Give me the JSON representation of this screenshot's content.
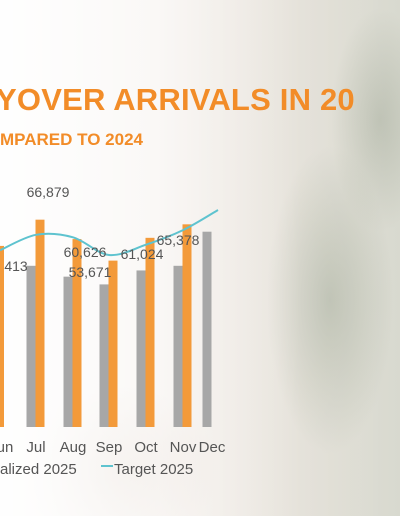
{
  "title": "YOVER ARRIVALS IN 20",
  "subtitle": "MPARED TO 2024",
  "colors": {
    "title": "#f28c28",
    "realized_2025": "#f39a3a",
    "actual_2024": "#a7a7a7",
    "target_2025": "#5ec3cf",
    "label_text": "#555555"
  },
  "chart_data": {
    "type": "bar",
    "categories": [
      "un",
      "Jul",
      "Aug",
      "Sep",
      "Oct",
      "Nov",
      "Dec"
    ],
    "series": [
      {
        "name": "",
        "kind": "bar",
        "values": [
          null,
          52000,
          48500,
          46000,
          50500,
          52000,
          63000
        ]
      },
      {
        "name": "alized 2025",
        "kind": "bar",
        "values": [
          58413,
          66879,
          60626,
          53671,
          61024,
          65378,
          null
        ]
      },
      {
        "name": "Target 2025",
        "kind": "line",
        "values": [
          57000,
          62000,
          61200,
          55500,
          58800,
          63500,
          70000
        ]
      }
    ],
    "data_labels": [
      "413",
      "66,879",
      "60,626",
      "53,671",
      "61,024",
      "65,378"
    ],
    "ylim": [
      0,
      72000
    ],
    "grid": false,
    "legend": "bottom"
  }
}
